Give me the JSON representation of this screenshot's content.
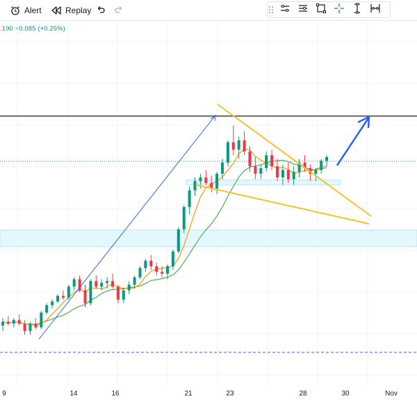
{
  "toolbar": {
    "alert_label": "Alert",
    "replay_label": "Replay",
    "alert_icon": "alarm-clock-icon",
    "replay_icon": "replay-rewind-icon",
    "undo_icon": "undo-icon",
    "redo_icon": "redo-icon"
  },
  "legend": {
    "price_fragment": ".190",
    "change": "+0.085",
    "change_pct": "(+0.25%)",
    "color": "#089981"
  },
  "drawing_toolbar": {
    "tools": [
      "settings-lines-icon",
      "text-lines-icon",
      "rectangle-select-icon",
      "crosshair-icon",
      "measure-icon",
      "range-icon"
    ]
  },
  "x_axis": {
    "labels": [
      "9",
      "14",
      "16",
      "21",
      "23",
      "28",
      "30",
      "Nov"
    ]
  },
  "colors": {
    "up": "#089981",
    "down": "#f23645",
    "ma_fast": "#ff9800",
    "ma_slow": "#4caf50",
    "pattern": "#f6c12a",
    "arrow": "#2962ff",
    "zone": "#e3f7fd"
  },
  "chart_data": {
    "type": "candlestick",
    "x_labels": [
      "9",
      "14",
      "16",
      "21",
      "23",
      "28",
      "30",
      "Nov"
    ],
    "y_axis_labels": "not visible",
    "note_values": "relative price scale (no visible y tick labels)",
    "candles": [
      {
        "o": 60,
        "h": 64,
        "l": 57,
        "c": 62
      },
      {
        "o": 62,
        "h": 65,
        "l": 60,
        "c": 61
      },
      {
        "o": 61,
        "h": 64,
        "l": 59,
        "c": 63
      },
      {
        "o": 63,
        "h": 66,
        "l": 60,
        "c": 61
      },
      {
        "o": 61,
        "h": 63,
        "l": 55,
        "c": 57
      },
      {
        "o": 57,
        "h": 62,
        "l": 55,
        "c": 61
      },
      {
        "o": 61,
        "h": 64,
        "l": 58,
        "c": 59
      },
      {
        "o": 59,
        "h": 68,
        "l": 58,
        "c": 67
      },
      {
        "o": 67,
        "h": 72,
        "l": 66,
        "c": 71
      },
      {
        "o": 71,
        "h": 74,
        "l": 69,
        "c": 73
      },
      {
        "o": 73,
        "h": 77,
        "l": 72,
        "c": 76
      },
      {
        "o": 76,
        "h": 79,
        "l": 74,
        "c": 75
      },
      {
        "o": 75,
        "h": 82,
        "l": 74,
        "c": 81
      },
      {
        "o": 81,
        "h": 86,
        "l": 79,
        "c": 85
      },
      {
        "o": 85,
        "h": 87,
        "l": 78,
        "c": 79
      },
      {
        "o": 79,
        "h": 82,
        "l": 70,
        "c": 72
      },
      {
        "o": 72,
        "h": 85,
        "l": 71,
        "c": 84
      },
      {
        "o": 84,
        "h": 87,
        "l": 80,
        "c": 81
      },
      {
        "o": 81,
        "h": 85,
        "l": 79,
        "c": 83
      },
      {
        "o": 83,
        "h": 86,
        "l": 80,
        "c": 84
      },
      {
        "o": 84,
        "h": 88,
        "l": 80,
        "c": 81
      },
      {
        "o": 81,
        "h": 82,
        "l": 72,
        "c": 74
      },
      {
        "o": 74,
        "h": 80,
        "l": 72,
        "c": 79
      },
      {
        "o": 79,
        "h": 84,
        "l": 77,
        "c": 82
      },
      {
        "o": 82,
        "h": 87,
        "l": 80,
        "c": 86
      },
      {
        "o": 86,
        "h": 92,
        "l": 85,
        "c": 91
      },
      {
        "o": 91,
        "h": 96,
        "l": 89,
        "c": 95
      },
      {
        "o": 95,
        "h": 98,
        "l": 90,
        "c": 92
      },
      {
        "o": 92,
        "h": 94,
        "l": 87,
        "c": 89
      },
      {
        "o": 89,
        "h": 92,
        "l": 86,
        "c": 88
      },
      {
        "o": 88,
        "h": 93,
        "l": 85,
        "c": 92
      },
      {
        "o": 92,
        "h": 101,
        "l": 90,
        "c": 100
      },
      {
        "o": 100,
        "h": 113,
        "l": 99,
        "c": 112
      },
      {
        "o": 112,
        "h": 125,
        "l": 110,
        "c": 124
      },
      {
        "o": 124,
        "h": 135,
        "l": 120,
        "c": 133
      },
      {
        "o": 133,
        "h": 140,
        "l": 130,
        "c": 138
      },
      {
        "o": 138,
        "h": 142,
        "l": 134,
        "c": 140
      },
      {
        "o": 140,
        "h": 144,
        "l": 136,
        "c": 137
      },
      {
        "o": 137,
        "h": 141,
        "l": 132,
        "c": 134
      },
      {
        "o": 134,
        "h": 143,
        "l": 131,
        "c": 142
      },
      {
        "o": 142,
        "h": 150,
        "l": 139,
        "c": 148
      },
      {
        "o": 148,
        "h": 160,
        "l": 146,
        "c": 159
      },
      {
        "o": 159,
        "h": 168,
        "l": 152,
        "c": 155
      },
      {
        "o": 155,
        "h": 162,
        "l": 150,
        "c": 160
      },
      {
        "o": 160,
        "h": 165,
        "l": 152,
        "c": 154
      },
      {
        "o": 154,
        "h": 157,
        "l": 143,
        "c": 146
      },
      {
        "o": 146,
        "h": 151,
        "l": 139,
        "c": 142
      },
      {
        "o": 142,
        "h": 147,
        "l": 139,
        "c": 145
      },
      {
        "o": 145,
        "h": 154,
        "l": 143,
        "c": 152
      },
      {
        "o": 152,
        "h": 155,
        "l": 144,
        "c": 146
      },
      {
        "o": 146,
        "h": 150,
        "l": 138,
        "c": 140
      },
      {
        "o": 140,
        "h": 147,
        "l": 136,
        "c": 144
      },
      {
        "o": 144,
        "h": 148,
        "l": 137,
        "c": 139
      },
      {
        "o": 139,
        "h": 146,
        "l": 136,
        "c": 143
      },
      {
        "o": 143,
        "h": 150,
        "l": 140,
        "c": 148
      },
      {
        "o": 148,
        "h": 152,
        "l": 143,
        "c": 145
      },
      {
        "o": 145,
        "h": 147,
        "l": 138,
        "c": 142
      },
      {
        "o": 142,
        "h": 145,
        "l": 138,
        "c": 144
      },
      {
        "o": 144,
        "h": 150,
        "l": 142,
        "c": 149
      },
      {
        "o": 149,
        "h": 152,
        "l": 146,
        "c": 151
      }
    ],
    "moving_averages": [
      "fast (orange)",
      "slow (green)"
    ],
    "annotations": [
      "falling wedge",
      "support zone",
      "resistance line",
      "breakout arrow"
    ]
  }
}
